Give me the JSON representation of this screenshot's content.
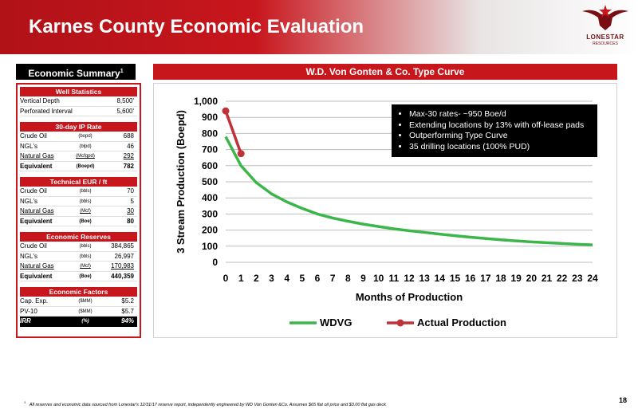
{
  "header": {
    "title": "Karnes County Economic Evaluation"
  },
  "logo": {
    "name": "LONESTAR",
    "sub": "RESOURCES"
  },
  "summary": {
    "title": "Economic Summary",
    "title_sup": "1",
    "well_stats": {
      "heading": "Well Statistics",
      "rows": [
        {
          "label": "Vertical Depth",
          "value": "8,500'"
        },
        {
          "label": "Perforated Interval",
          "value": "5,600'"
        }
      ]
    },
    "ip_rate": {
      "heading": "30-day IP Rate",
      "rows": [
        {
          "label": "Crude Oil",
          "unit": "(bopd)",
          "value": "688"
        },
        {
          "label": "NGL's",
          "unit": "(blpd)",
          "value": "46"
        },
        {
          "label": "Natural Gas",
          "unit": "(Mcfgpd)",
          "value": "292"
        },
        {
          "label": "Equivalent",
          "unit": "(Boepd)",
          "value": "782"
        }
      ]
    },
    "eur": {
      "heading": "Technical EUR / ft",
      "rows": [
        {
          "label": "Crude Oil",
          "unit": "(bbls)",
          "value": "70"
        },
        {
          "label": "NGL's",
          "unit": "(bbls)",
          "value": "5"
        },
        {
          "label": "Natural Gas",
          "unit": "(Mcf)",
          "value": "30"
        },
        {
          "label": "Equivalent",
          "unit": "(Boe)",
          "value": "80"
        }
      ]
    },
    "reserves": {
      "heading": "Economic Reserves",
      "rows": [
        {
          "label": "Crude Oil",
          "unit": "(bbls)",
          "value": "384,865"
        },
        {
          "label": "NGL's",
          "unit": "(bbls)",
          "value": "26,997"
        },
        {
          "label": "Natural Gas",
          "unit": "(Mcf)",
          "value": "170,983"
        },
        {
          "label": "Equivalent",
          "unit": "(Boe)",
          "value": "440,359"
        }
      ]
    },
    "factors": {
      "heading": "Economic Factors",
      "rows": [
        {
          "label": "Cap. Exp.",
          "unit": "($MM)",
          "value": "$5.2"
        },
        {
          "label": "PV-10",
          "unit": "($MM)",
          "value": "$5.7"
        },
        {
          "label": "IRR",
          "unit": "(%)",
          "value": "94%"
        }
      ]
    }
  },
  "chart_title": "W.D. Von Gonten & Co. Type Curve",
  "callout": {
    "items": [
      "Max-30 rates- ~950 Boe/d",
      "Extending locations by 13% with off-lease pads",
      "Outperforming Type Curve",
      "35 drilling locations (100% PUD)"
    ]
  },
  "chart_data": {
    "type": "line",
    "xlabel": "Months of Production",
    "ylabel": "3 Stream Production (Boepd)",
    "xlim": [
      0,
      24
    ],
    "ylim": [
      0,
      1000
    ],
    "x_ticks": [
      0,
      1,
      2,
      3,
      4,
      5,
      6,
      7,
      8,
      9,
      10,
      11,
      12,
      13,
      14,
      15,
      16,
      17,
      18,
      19,
      20,
      21,
      22,
      23,
      24
    ],
    "y_ticks": [
      0,
      100,
      200,
      300,
      400,
      500,
      600,
      700,
      800,
      900,
      1000
    ],
    "y_tick_labels": [
      "0",
      "100",
      "200",
      "300",
      "400",
      "500",
      "600",
      "700",
      "800",
      "900",
      "1,000"
    ],
    "legend_position": "bottom",
    "series": [
      {
        "name": "WDVG",
        "color": "#3cb54a",
        "marker": false,
        "x": [
          0,
          1,
          2,
          3,
          4,
          5,
          6,
          7,
          8,
          9,
          10,
          11,
          12,
          13,
          14,
          15,
          16,
          17,
          18,
          19,
          20,
          21,
          22,
          23,
          24
        ],
        "values": [
          780,
          600,
          495,
          425,
          375,
          335,
          300,
          275,
          255,
          237,
          222,
          208,
          196,
          186,
          175,
          165,
          156,
          148,
          140,
          133,
          127,
          122,
          117,
          112,
          108
        ]
      },
      {
        "name": "Actual Production",
        "color": "#c0323a",
        "marker": true,
        "x": [
          0,
          1
        ],
        "values": [
          940,
          675
        ]
      }
    ]
  },
  "footnote": {
    "sup": "1",
    "text": "All reserves and economic data sourced from Lonestar's 12/31/17 reserve report, independently engineered by WD Von Gonten &Co. Assumes $65 flat oil price and $3.00 flat gas deck"
  },
  "page_number": "18"
}
